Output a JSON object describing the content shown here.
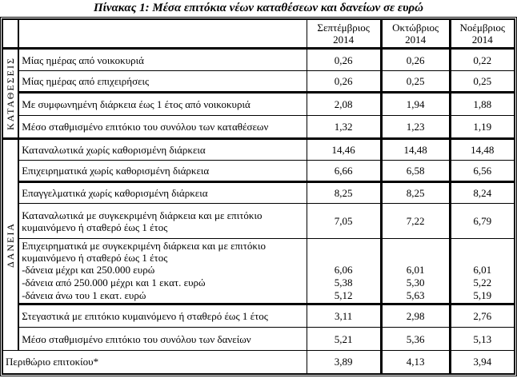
{
  "title": "Πίνακας 1: Μέσα επιτόκια νέων καταθέσεων και δανείων σε ευρώ",
  "header": {
    "columns": [
      {
        "month": "Σεπτέμβριος",
        "year": "2014"
      },
      {
        "month": "Οκτώβριος",
        "year": "2014"
      },
      {
        "month": "Νοέμβριος",
        "year": "2014"
      }
    ]
  },
  "sections": [
    {
      "label": "ΚΑΤΑΘΕΣΕΙΣ",
      "rows": [
        {
          "label": "Μίας ημέρας από νοικοκυριά",
          "values": [
            "0,26",
            "0,26",
            "0,22"
          ]
        },
        {
          "label": "Μίας ημέρας από επιχειρήσεις",
          "values": [
            "0,26",
            "0,25",
            "0,25"
          ],
          "group_end": true
        },
        {
          "label": "Με συμφωνημένη διάρκεια έως 1 έτος από νοικοκυριά",
          "values": [
            "2,08",
            "1,94",
            "1,88"
          ]
        },
        {
          "label": "Μέσο σταθμισμένο επιτόκιο του συνόλου των καταθέσεων",
          "values": [
            "1,32",
            "1,23",
            "1,19"
          ],
          "group_end": true
        }
      ]
    },
    {
      "label": "ΔΑΝΕΙΑ",
      "rows": [
        {
          "label": "Καταναλωτικά χωρίς καθορισμένη διάρκεια",
          "values": [
            "14,46",
            "14,48",
            "14,48"
          ]
        },
        {
          "label": "Επιχειρηματικά χωρίς καθορισμένη διάρκεια",
          "values": [
            "6,66",
            "6,58",
            "6,56"
          ],
          "group_end": true
        },
        {
          "label": "Επαγγελματικά χωρίς καθορισμένη διάρκεια",
          "values": [
            "8,25",
            "8,25",
            "8,24"
          ]
        },
        {
          "label": "Καταναλωτικά με συγκεκριμένη διάρκεια και με επιτόκιο κυμαινόμενο ή σταθερό έως 1 έτος",
          "values": [
            "7,05",
            "7,22",
            "6,79"
          ]
        },
        {
          "label": "Επιχειρηματικά με συγκεκριμένη διάρκεια και με επιτόκιο κυμαινόμενο ή σταθερό έως 1 έτος",
          "sub_items": [
            "-δάνεια μέχρι και 250.000 ευρώ",
            "-δάνεια από 250.000 μέχρι και 1 εκατ. ευρώ",
            "-δάνεια άνω του 1 εκατ. ευρώ"
          ],
          "sub_values": [
            [
              "6,06",
              "5,38",
              "5,12"
            ],
            [
              "6,01",
              "5,30",
              "5,63"
            ],
            [
              "6,01",
              "5,22",
              "5,19"
            ]
          ],
          "group_end": true
        },
        {
          "label": "Στεγαστικά με επιτόκιο κυμαινόμενο ή σταθερό έως 1 έτος",
          "values": [
            "3,11",
            "2,98",
            "2,76"
          ]
        },
        {
          "label": "Μέσο σταθμισμένο επιτόκιο του συνόλου των δανείων",
          "values": [
            "5,21",
            "5,36",
            "5,13"
          ]
        }
      ]
    }
  ],
  "footer": {
    "label": "Περιθώριο επιτοκίου*",
    "values": [
      "3,89",
      "4,13",
      "3,94"
    ]
  },
  "colors": {
    "border": "#000000",
    "text": "#000000",
    "background": "#ffffff"
  }
}
